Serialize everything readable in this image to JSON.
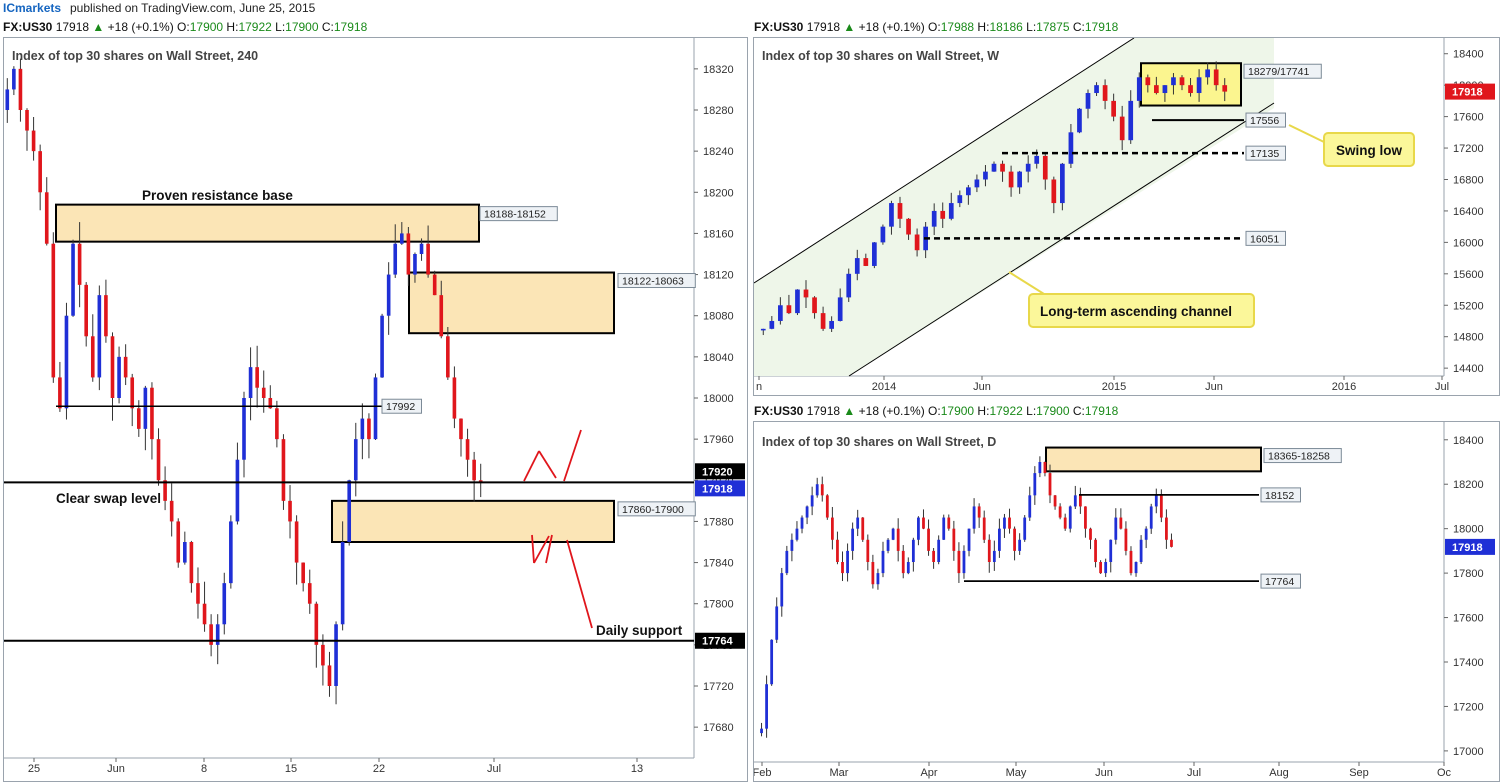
{
  "publisher": {
    "name": "ICmarkets",
    "text": "published on TradingView.com, June 25, 2015"
  },
  "panels": {
    "h4": {
      "header": {
        "symbol": "FX:US30",
        "price": "17918",
        "change": "+18 (+0.1%)",
        "o": "17900",
        "h": "17922",
        "l": "17900",
        "c": "17918"
      },
      "title": "Index of top 30 shares on Wall Street, 240"
    },
    "weekly": {
      "header": {
        "symbol": "FX:US30",
        "price": "17918",
        "change": "+18 (+0.1%)",
        "o": "17988",
        "h": "18186",
        "l": "17875",
        "c": "17918"
      },
      "title": "Index of top 30 shares on Wall Street, W"
    },
    "daily": {
      "header": {
        "symbol": "FX:US30",
        "price": "17918",
        "change": "+18 (+0.1%)",
        "o": "17900",
        "h": "17922",
        "l": "17900",
        "c": "17918"
      },
      "title": "Index of top 30 shares on Wall Street, D"
    }
  },
  "colors": {
    "up": "#1f2fd6",
    "down": "#e0161c",
    "zone_fill": "#fbe5b6",
    "zone_yellow": "#fbf58f",
    "channel_fill": "#eef6e9",
    "arrows": "#e0161c",
    "callout": "#fbf79a"
  },
  "chart_data": [
    {
      "type": "candlestick",
      "title": "Index of top 30 shares on Wall Street, 240",
      "x_ticks": [
        "25",
        "Jun",
        "8",
        "15",
        "22",
        "Jul",
        "13"
      ],
      "y_ticks": [
        17680,
        17720,
        17760,
        17800,
        17840,
        17880,
        17920,
        17960,
        18000,
        18040,
        18080,
        18120,
        18160,
        18200,
        18240,
        18280,
        18320
      ],
      "ylim": [
        17650,
        18350
      ],
      "price_labels": [
        {
          "value": 17920,
          "text": "17920"
        },
        {
          "value": 17918,
          "text": "17918"
        },
        {
          "value": 17764,
          "text": "17764"
        }
      ],
      "zones": [
        {
          "label": "18188-18152",
          "high": 18188,
          "low": 18152
        },
        {
          "label": "18122-18063",
          "high": 18122,
          "low": 18063
        },
        {
          "label": "17860-17900",
          "high": 17900,
          "low": 17860
        }
      ],
      "levels": [
        {
          "value": 17992,
          "label": "17992"
        },
        {
          "value": 17918,
          "label": "Clear swap level"
        },
        {
          "value": 17764,
          "label": "Daily support"
        }
      ],
      "annotations": [
        "Proven resistance base",
        "Clear swap level",
        "Daily support"
      ],
      "close_path": [
        18300,
        18320,
        18280,
        18260,
        18240,
        18200,
        18150,
        18020,
        17990,
        18080,
        18150,
        18110,
        18060,
        18020,
        18100,
        18060,
        18000,
        18040,
        18020,
        17990,
        17970,
        18010,
        17960,
        17920,
        17900,
        17880,
        17840,
        17860,
        17820,
        17800,
        17780,
        17760,
        17780,
        17820,
        17880,
        17940,
        18000,
        18030,
        18010,
        18000,
        17990,
        17960,
        17900,
        17880,
        17840,
        17820,
        17800,
        17760,
        17740,
        17720,
        17780,
        17860,
        17920,
        17960,
        17980,
        17960,
        18020,
        18080,
        18120,
        18150,
        18160,
        18120,
        18140,
        18150,
        18120,
        18100,
        18060,
        18020,
        17980,
        17960,
        17940,
        17920,
        17918
      ]
    },
    {
      "type": "candlestick",
      "title": "Index of top 30 shares on Wall Street, W",
      "x_ticks": [
        "n",
        "2014",
        "Jun",
        "2015",
        "Jun",
        "2016",
        "Jul"
      ],
      "y_ticks": [
        14400,
        14800,
        15200,
        15600,
        16000,
        16400,
        16800,
        17200,
        17600,
        18000,
        18400
      ],
      "ylim": [
        14300,
        18600
      ],
      "price_labels": [
        {
          "value": 17918,
          "text": "17918"
        }
      ],
      "zones": [
        {
          "label": "18279/17741",
          "high": 18279,
          "low": 17741
        }
      ],
      "levels": [
        {
          "value": 17556,
          "label": "17556"
        },
        {
          "value": 17135,
          "label": "17135"
        },
        {
          "value": 16051,
          "label": "16051"
        }
      ],
      "annotations": [
        "Swing low",
        "Long-term ascending channel"
      ],
      "close_path": [
        14900,
        15000,
        15200,
        15100,
        15400,
        15300,
        15100,
        14900,
        15000,
        15300,
        15600,
        15800,
        15700,
        16000,
        16200,
        16500,
        16300,
        16100,
        15900,
        16200,
        16400,
        16300,
        16500,
        16600,
        16700,
        16800,
        16900,
        17000,
        16900,
        16700,
        16900,
        17000,
        17100,
        16800,
        16500,
        17000,
        17400,
        17700,
        17900,
        18000,
        17800,
        17600,
        17300,
        17800,
        18100,
        18000,
        17900,
        18000,
        18100,
        18000,
        17900,
        18100,
        18200,
        18000,
        17918
      ]
    },
    {
      "type": "candlestick",
      "title": "Index of top 30 shares on Wall Street, D",
      "x_ticks": [
        "Feb",
        "Mar",
        "Apr",
        "May",
        "Jun",
        "Jul",
        "Aug",
        "Sep",
        "Oc"
      ],
      "y_ticks": [
        17000,
        17200,
        17400,
        17600,
        17800,
        18000,
        18200,
        18400
      ],
      "ylim": [
        16950,
        18480
      ],
      "price_labels": [
        {
          "value": 17918,
          "text": "17918"
        }
      ],
      "zones": [
        {
          "label": "18365-18258",
          "high": 18365,
          "low": 18258
        }
      ],
      "levels": [
        {
          "value": 18152,
          "label": "18152"
        },
        {
          "value": 17764,
          "label": "17764"
        }
      ],
      "annotations": [],
      "close_path": [
        17100,
        17300,
        17500,
        17650,
        17800,
        17900,
        17950,
        18000,
        18050,
        18100,
        18150,
        18200,
        18150,
        18050,
        17950,
        17850,
        17800,
        17900,
        18000,
        18050,
        17950,
        17850,
        17750,
        17800,
        17900,
        17950,
        18000,
        17900,
        17800,
        17850,
        17950,
        18050,
        18000,
        17900,
        17850,
        17950,
        18050,
        18000,
        17900,
        17800,
        17900,
        18000,
        18100,
        18050,
        17950,
        17850,
        17900,
        18000,
        18050,
        18000,
        17900,
        17950,
        18050,
        18150,
        18250,
        18300,
        18250,
        18150,
        18100,
        18050,
        18000,
        18100,
        18150,
        18100,
        18000,
        17950,
        17850,
        17800,
        17850,
        17950,
        18050,
        18000,
        17900,
        17800,
        17850,
        17950,
        18000,
        18100,
        18150,
        18050,
        17950,
        17918
      ]
    }
  ]
}
